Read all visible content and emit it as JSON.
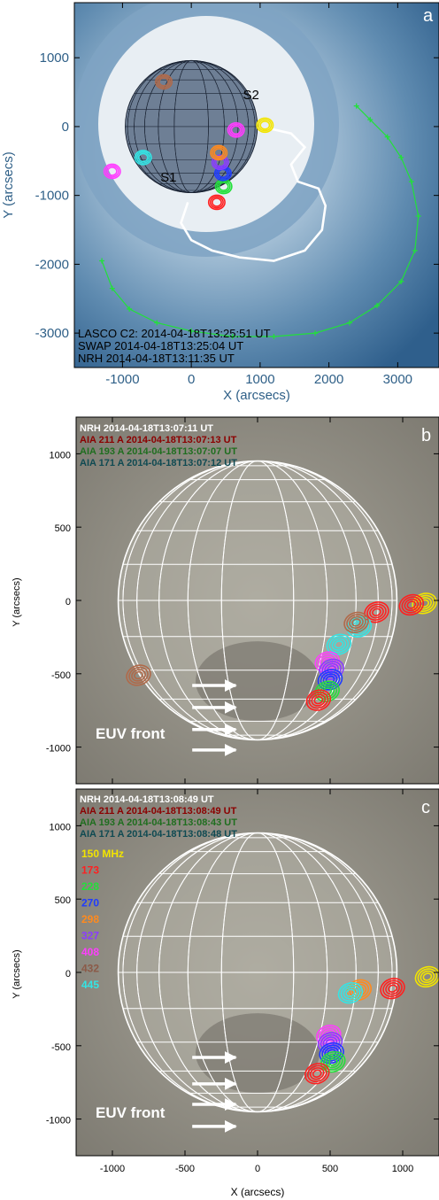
{
  "chart_data": [
    {
      "panel": "a",
      "type": "scatter",
      "panel_label": "a",
      "xlabel": "X (arcsecs)",
      "ylabel": "Y (arcsecs)",
      "xlim": [
        -1700,
        3600
      ],
      "ylim": [
        -3500,
        1800
      ],
      "xticks": [
        -1000,
        0,
        1000,
        2000,
        3000
      ],
      "yticks": [
        -3000,
        -2000,
        -1000,
        0,
        1000
      ],
      "annotations": [
        {
          "text": "S1",
          "x": -450,
          "y": -800
        },
        {
          "text": "S2",
          "x": 750,
          "y": 400
        }
      ],
      "info_lines": [
        "LASCO C2: 2014-04-18T13:25:51 UT",
        "SWAP 2014-04-18T13:25:04 UT",
        "NRH 2014-04-18T13:11:35 UT"
      ],
      "colors": {
        "front": "#22e03a",
        "track": "#ffffff",
        "background": "#5b86a8"
      },
      "cme_front": [
        [
          -1300,
          -1950
        ],
        [
          -1150,
          -2350
        ],
        [
          -900,
          -2650
        ],
        [
          -500,
          -2850
        ],
        [
          0,
          -2970
        ],
        [
          600,
          -3050
        ],
        [
          1200,
          -3050
        ],
        [
          1800,
          -3000
        ],
        [
          2300,
          -2850
        ],
        [
          2700,
          -2600
        ],
        [
          3050,
          -2250
        ],
        [
          3250,
          -1800
        ],
        [
          3300,
          -1300
        ],
        [
          3200,
          -800
        ],
        [
          3050,
          -450
        ],
        [
          2850,
          -150
        ],
        [
          2600,
          100
        ],
        [
          2400,
          300
        ]
      ],
      "white_track": [
        [
          -50,
          -1100
        ],
        [
          -150,
          -1400
        ],
        [
          0,
          -1650
        ],
        [
          300,
          -1800
        ],
        [
          700,
          -1900
        ],
        [
          1200,
          -1950
        ],
        [
          1650,
          -1800
        ],
        [
          1900,
          -1500
        ],
        [
          1950,
          -1150
        ],
        [
          1850,
          -900
        ],
        [
          1550,
          -800
        ],
        [
          1450,
          -550
        ],
        [
          1650,
          -300
        ],
        [
          1450,
          -100
        ],
        [
          1100,
          -20
        ]
      ],
      "sources": [
        {
          "name": "150 MHz",
          "x": 1070,
          "y": 20,
          "color": "#f2e400"
        },
        {
          "name": "408",
          "x": 650,
          "y": -50,
          "color": "#ff3dff"
        },
        {
          "name": "173",
          "x": 370,
          "y": -1100,
          "color": "#ff2020"
        },
        {
          "name": "228",
          "x": 470,
          "y": -870,
          "color": "#22e03a"
        },
        {
          "name": "270",
          "x": 460,
          "y": -680,
          "color": "#1f3cff"
        },
        {
          "name": "327",
          "x": 420,
          "y": -520,
          "color": "#8a3cff"
        },
        {
          "name": "298",
          "x": 400,
          "y": -380,
          "color": "#ff8a1e"
        },
        {
          "name": "445",
          "x": -700,
          "y": -450,
          "color": "#33e5e5"
        },
        {
          "name": "408",
          "x": -1150,
          "y": -650,
          "color": "#ff3dff"
        },
        {
          "name": "432",
          "x": -400,
          "y": 650,
          "color": "#b06a4a"
        }
      ]
    },
    {
      "panel": "b",
      "type": "scatter",
      "panel_label": "b",
      "xlabel": "",
      "ylabel": "Y (arcsecs)",
      "xlim": [
        -1250,
        1250
      ],
      "ylim": [
        -1250,
        1250
      ],
      "xticks": [
        -1000,
        -500,
        0,
        500,
        1000
      ],
      "yticks": [
        -1000,
        -500,
        0,
        500,
        1000
      ],
      "info_lines": [
        {
          "text": "NRH 2014-04-18T13:07:11 UT",
          "color": "#ffffff"
        },
        {
          "text": "AIA 211 A 2014-04-18T13:07:13 UT",
          "color": "#8b0000"
        },
        {
          "text": "AIA 193 A 2014-04-18T13:07:07 UT",
          "color": "#1f6e1f"
        },
        {
          "text": "AIA 171 A 2014-04-18T13:07:12 UT",
          "color": "#0f4a52"
        }
      ],
      "front_label": "EUV front",
      "arrows_y": [
        -580,
        -730,
        -880,
        -1020
      ],
      "sources": [
        {
          "name": "150 MHz",
          "x": 1150,
          "y": -20,
          "color": "#f2e400"
        },
        {
          "name": "173",
          "x": 1060,
          "y": -30,
          "color": "#ff2020"
        },
        {
          "name": "173",
          "x": 820,
          "y": -80,
          "color": "#ff2020"
        },
        {
          "name": "445",
          "x": 700,
          "y": -180,
          "color": "#33e5e5"
        },
        {
          "name": "445",
          "x": 560,
          "y": -300,
          "color": "#33e5e5"
        },
        {
          "name": "432",
          "x": 680,
          "y": -150,
          "color": "#b06a4a"
        },
        {
          "name": "408",
          "x": 480,
          "y": -420,
          "color": "#ff3dff"
        },
        {
          "name": "327",
          "x": 510,
          "y": -470,
          "color": "#8a3cff"
        },
        {
          "name": "270",
          "x": 500,
          "y": -540,
          "color": "#1f3cff"
        },
        {
          "name": "228",
          "x": 480,
          "y": -620,
          "color": "#22e03a"
        },
        {
          "name": "173",
          "x": 420,
          "y": -680,
          "color": "#ff2020"
        },
        {
          "name": "432",
          "x": -820,
          "y": -510,
          "color": "#b06a4a"
        }
      ]
    },
    {
      "panel": "c",
      "type": "scatter",
      "panel_label": "c",
      "xlabel": "X (arcsecs)",
      "ylabel": "Y (arcsecs)",
      "xlim": [
        -1250,
        1250
      ],
      "ylim": [
        -1250,
        1250
      ],
      "xticks": [
        -1000,
        -500,
        0,
        500,
        1000
      ],
      "yticks": [
        -1000,
        -500,
        0,
        500,
        1000
      ],
      "info_lines": [
        {
          "text": "NRH 2014-04-18T13:08:49 UT",
          "color": "#ffffff"
        },
        {
          "text": "AIA 211 A 2014-04-18T13:08:49 UT",
          "color": "#8b0000"
        },
        {
          "text": "AIA 193 A 2014-04-18T13:08:43 UT",
          "color": "#1f6e1f"
        },
        {
          "text": "AIA 171 A 2014-04-18T13:08:48 UT",
          "color": "#0f4a52"
        }
      ],
      "front_label": "EUV front",
      "arrows_y": [
        -580,
        -760,
        -900,
        -1050
      ],
      "legend": [
        {
          "label": "150 MHz",
          "color": "#f2e400"
        },
        {
          "label": "173",
          "color": "#ff2020"
        },
        {
          "label": "228",
          "color": "#22e03a"
        },
        {
          "label": "270",
          "color": "#1f3cff"
        },
        {
          "label": "298",
          "color": "#ff8a1e"
        },
        {
          "label": "327",
          "color": "#8a3cff"
        },
        {
          "label": "408",
          "color": "#ff3dff"
        },
        {
          "label": "432",
          "color": "#8b5a48"
        },
        {
          "label": "445",
          "color": "#33e5e5"
        }
      ],
      "sources": [
        {
          "name": "150 MHz",
          "x": 1170,
          "y": -30,
          "color": "#f2e400"
        },
        {
          "name": "173",
          "x": 930,
          "y": -110,
          "color": "#ff2020"
        },
        {
          "name": "298",
          "x": 700,
          "y": -120,
          "color": "#ff8a1e"
        },
        {
          "name": "445",
          "x": 640,
          "y": -140,
          "color": "#33e5e5"
        },
        {
          "name": "408",
          "x": 490,
          "y": -430,
          "color": "#ff3dff"
        },
        {
          "name": "327",
          "x": 500,
          "y": -480,
          "color": "#8a3cff"
        },
        {
          "name": "270",
          "x": 510,
          "y": -550,
          "color": "#1f3cff"
        },
        {
          "name": "228",
          "x": 520,
          "y": -610,
          "color": "#22e03a"
        },
        {
          "name": "173",
          "x": 410,
          "y": -690,
          "color": "#ff2020"
        }
      ]
    }
  ]
}
